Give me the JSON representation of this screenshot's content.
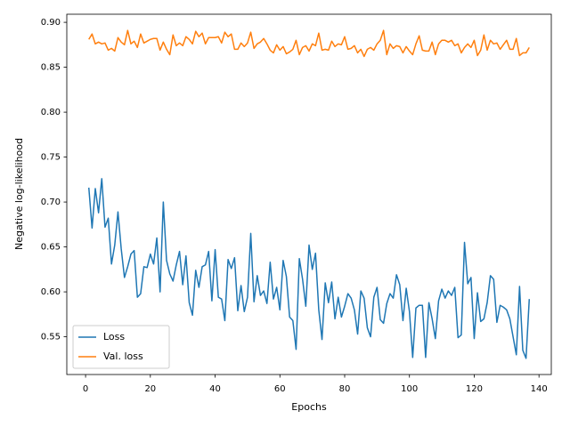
{
  "chart_data": {
    "type": "line",
    "xlabel": "Epochs",
    "ylabel": "Negative log-likelihood",
    "x": [
      1,
      2,
      3,
      4,
      5,
      6,
      7,
      8,
      9,
      10,
      11,
      12,
      13,
      14,
      15,
      16,
      17,
      18,
      19,
      20,
      21,
      22,
      23,
      24,
      25,
      26,
      27,
      28,
      29,
      30,
      31,
      32,
      33,
      34,
      35,
      36,
      37,
      38,
      39,
      40,
      41,
      42,
      43,
      44,
      45,
      46,
      47,
      48,
      49,
      50,
      51,
      52,
      53,
      54,
      55,
      56,
      57,
      58,
      59,
      60,
      61,
      62,
      63,
      64,
      65,
      66,
      67,
      68,
      69,
      70,
      71,
      72,
      73,
      74,
      75,
      76,
      77,
      78,
      79,
      80,
      81,
      82,
      83,
      84,
      85,
      86,
      87,
      88,
      89,
      90,
      91,
      92,
      93,
      94,
      95,
      96,
      97,
      98,
      99,
      100,
      101,
      102,
      103,
      104,
      105,
      106,
      107,
      108,
      109,
      110,
      111,
      112,
      113,
      114,
      115,
      116,
      117,
      118,
      119,
      120,
      121,
      122,
      123,
      124,
      125,
      126,
      127,
      128,
      129,
      130,
      131,
      132,
      133,
      134,
      135,
      136,
      137
    ],
    "series": [
      {
        "name": "Loss",
        "color": "#1f77b4",
        "values": [
          0.716,
          0.671,
          0.715,
          0.688,
          0.726,
          0.672,
          0.682,
          0.631,
          0.652,
          0.689,
          0.648,
          0.616,
          0.628,
          0.642,
          0.646,
          0.594,
          0.598,
          0.628,
          0.627,
          0.642,
          0.631,
          0.66,
          0.6,
          0.7,
          0.635,
          0.62,
          0.612,
          0.63,
          0.645,
          0.608,
          0.64,
          0.588,
          0.574,
          0.624,
          0.605,
          0.628,
          0.63,
          0.645,
          0.59,
          0.647,
          0.594,
          0.592,
          0.568,
          0.636,
          0.626,
          0.638,
          0.579,
          0.607,
          0.578,
          0.594,
          0.665,
          0.589,
          0.618,
          0.596,
          0.601,
          0.587,
          0.633,
          0.592,
          0.605,
          0.58,
          0.635,
          0.617,
          0.572,
          0.568,
          0.536,
          0.637,
          0.614,
          0.584,
          0.652,
          0.625,
          0.643,
          0.58,
          0.547,
          0.61,
          0.588,
          0.611,
          0.57,
          0.594,
          0.572,
          0.584,
          0.598,
          0.593,
          0.58,
          0.553,
          0.601,
          0.593,
          0.56,
          0.55,
          0.594,
          0.605,
          0.569,
          0.565,
          0.587,
          0.598,
          0.593,
          0.619,
          0.608,
          0.568,
          0.604,
          0.578,
          0.527,
          0.582,
          0.585,
          0.585,
          0.527,
          0.588,
          0.57,
          0.548,
          0.59,
          0.603,
          0.593,
          0.601,
          0.596,
          0.605,
          0.549,
          0.552,
          0.655,
          0.609,
          0.616,
          0.548,
          0.599,
          0.567,
          0.57,
          0.588,
          0.618,
          0.614,
          0.566,
          0.585,
          0.583,
          0.58,
          0.57,
          0.55,
          0.53,
          0.606,
          0.535,
          0.526,
          0.592
        ]
      },
      {
        "name": "Val. loss",
        "color": "#ff7f0e",
        "values": [
          0.881,
          0.887,
          0.876,
          0.878,
          0.876,
          0.877,
          0.869,
          0.871,
          0.868,
          0.883,
          0.878,
          0.875,
          0.891,
          0.876,
          0.879,
          0.872,
          0.887,
          0.877,
          0.879,
          0.881,
          0.882,
          0.882,
          0.869,
          0.878,
          0.87,
          0.864,
          0.886,
          0.874,
          0.877,
          0.874,
          0.884,
          0.881,
          0.876,
          0.89,
          0.884,
          0.888,
          0.876,
          0.883,
          0.883,
          0.883,
          0.884,
          0.877,
          0.889,
          0.884,
          0.887,
          0.87,
          0.87,
          0.877,
          0.873,
          0.877,
          0.889,
          0.871,
          0.876,
          0.878,
          0.882,
          0.876,
          0.869,
          0.866,
          0.875,
          0.869,
          0.873,
          0.865,
          0.867,
          0.87,
          0.88,
          0.864,
          0.872,
          0.874,
          0.868,
          0.876,
          0.874,
          0.888,
          0.869,
          0.87,
          0.869,
          0.879,
          0.873,
          0.876,
          0.875,
          0.884,
          0.87,
          0.871,
          0.874,
          0.866,
          0.87,
          0.862,
          0.87,
          0.872,
          0.869,
          0.876,
          0.88,
          0.891,
          0.864,
          0.876,
          0.871,
          0.874,
          0.873,
          0.866,
          0.873,
          0.868,
          0.864,
          0.876,
          0.885,
          0.869,
          0.868,
          0.868,
          0.878,
          0.864,
          0.876,
          0.88,
          0.88,
          0.878,
          0.88,
          0.874,
          0.876,
          0.866,
          0.872,
          0.876,
          0.872,
          0.88,
          0.863,
          0.869,
          0.886,
          0.869,
          0.88,
          0.876,
          0.877,
          0.87,
          0.875,
          0.88,
          0.87,
          0.87,
          0.882,
          0.863,
          0.866,
          0.866,
          0.872
        ]
      }
    ],
    "xlim": [
      -5.8,
      143.8
    ],
    "xticks": [
      0,
      20,
      40,
      60,
      80,
      100,
      120,
      140
    ],
    "ylim": [
      0.508,
      0.909
    ],
    "yticks": [
      0.55,
      {
        "value": 0.6,
        "label": "0.60"
      },
      0.65,
      {
        "value": 0.7,
        "label": "0.70"
      },
      0.75,
      {
        "value": 0.8,
        "label": "0.80"
      },
      0.85,
      {
        "value": 0.9,
        "label": "0.90"
      }
    ],
    "legend": "lower left",
    "grid": false
  }
}
